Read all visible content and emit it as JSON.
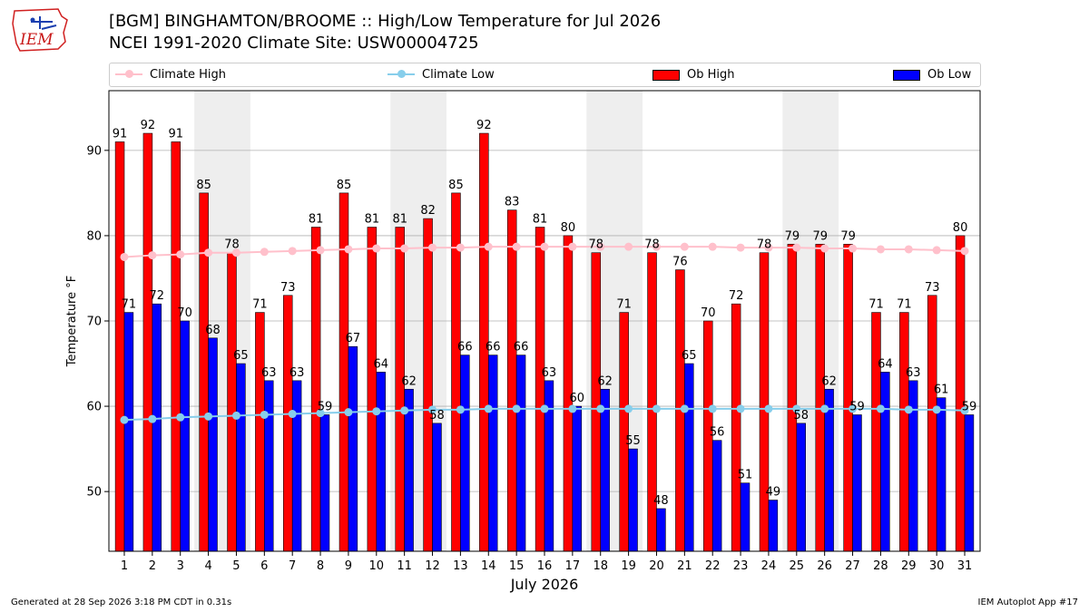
{
  "header": {
    "title_line1": "[BGM] BINGHAMTON/BROOME :: High/Low Temperature for Jul 2026",
    "title_line2": "NCEI 1991-2020 Climate Site: USW00004725",
    "logo_text": "IEM"
  },
  "legend": {
    "climate_high": "Climate High",
    "climate_low": "Climate Low",
    "ob_high": "Ob High",
    "ob_low": "Ob Low"
  },
  "footer": {
    "generated": "Generated at 28 Sep 2026 3:18 PM CDT in 0.31s",
    "app": "IEM Autoplot App #17"
  },
  "colors": {
    "ob_high": "#ff0000",
    "ob_low": "#0000ff",
    "climate_high": "#ffc0cb",
    "climate_low": "#87ceeb",
    "weekend_shade": "#eeeeee",
    "grid": "#b0b0b0"
  },
  "chart_data": {
    "type": "bar",
    "xlabel": "July 2026",
    "ylabel": "Temperature °F",
    "ylim": [
      43,
      97
    ],
    "yticks": [
      50,
      60,
      70,
      80,
      90
    ],
    "grid": "horizontal",
    "legend_placement": "top",
    "weekend_bands": [
      [
        4,
        5
      ],
      [
        11,
        12
      ],
      [
        18,
        19
      ],
      [
        25,
        26
      ]
    ],
    "categories": [
      "1",
      "2",
      "3",
      "4",
      "5",
      "6",
      "7",
      "8",
      "9",
      "10",
      "11",
      "12",
      "13",
      "14",
      "15",
      "16",
      "17",
      "18",
      "19",
      "20",
      "21",
      "22",
      "23",
      "24",
      "25",
      "26",
      "27",
      "28",
      "29",
      "30",
      "31"
    ],
    "series": [
      {
        "name": "Ob High",
        "type": "bar",
        "values": [
          91,
          92,
          91,
          85,
          78,
          71,
          73,
          81,
          85,
          81,
          81,
          82,
          85,
          92,
          83,
          81,
          80,
          78,
          71,
          78,
          76,
          70,
          72,
          78,
          79,
          79,
          79,
          71,
          71,
          73,
          80
        ]
      },
      {
        "name": "Ob Low",
        "type": "bar",
        "values": [
          71,
          72,
          70,
          68,
          65,
          63,
          63,
          59,
          67,
          64,
          62,
          58,
          66,
          66,
          66,
          63,
          60,
          62,
          55,
          48,
          65,
          56,
          51,
          49,
          58,
          62,
          59,
          64,
          63,
          61,
          59
        ]
      },
      {
        "name": "Climate High",
        "type": "line",
        "values": [
          77.5,
          77.7,
          77.8,
          78.0,
          78.0,
          78.1,
          78.2,
          78.3,
          78.4,
          78.5,
          78.5,
          78.6,
          78.6,
          78.7,
          78.7,
          78.7,
          78.7,
          78.7,
          78.7,
          78.7,
          78.7,
          78.7,
          78.6,
          78.6,
          78.6,
          78.5,
          78.5,
          78.4,
          78.4,
          78.3,
          78.2
        ]
      },
      {
        "name": "Climate Low",
        "type": "line",
        "values": [
          58.4,
          58.5,
          58.7,
          58.8,
          58.9,
          59.0,
          59.1,
          59.2,
          59.3,
          59.4,
          59.5,
          59.6,
          59.6,
          59.7,
          59.7,
          59.7,
          59.7,
          59.7,
          59.7,
          59.7,
          59.7,
          59.7,
          59.7,
          59.7,
          59.7,
          59.7,
          59.7,
          59.7,
          59.6,
          59.6,
          59.5
        ]
      }
    ]
  }
}
